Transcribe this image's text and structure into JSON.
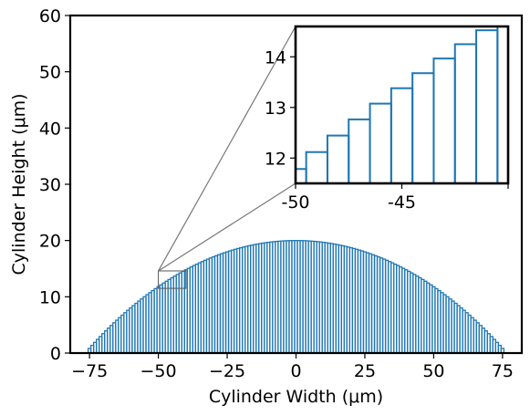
{
  "chart_data": [
    {
      "type": "bar",
      "title": "",
      "xlabel": "Cylinder Width (μm)",
      "ylabel": "Cylinder Height (μm)",
      "xlim": [
        -82,
        82
      ],
      "ylim": [
        0,
        60
      ],
      "xticks": [
        "−75",
        "−50",
        "−25",
        "0",
        "25",
        "50",
        "75"
      ],
      "xtick_values": [
        -75,
        -50,
        -25,
        0,
        25,
        50,
        75
      ],
      "yticks": [
        "0",
        "10",
        "20",
        "30",
        "40",
        "50",
        "60"
      ],
      "ytick_values": [
        0,
        10,
        20,
        30,
        40,
        50,
        60
      ],
      "bar_color": "#1f77b4",
      "bar_style": "outlined",
      "bar_width": 1,
      "profile": "circular cap: height = sqrt(R^2 - x^2) - (R - 20), R = 156.25",
      "bar_centers_range": [
        -75,
        75
      ],
      "peak_height": 20,
      "grid": false
    },
    {
      "type": "bar",
      "role": "inset zoom",
      "xlim": [
        -50,
        -40
      ],
      "ylim": [
        11.5,
        14.6
      ],
      "xticks": [
        "-50",
        "-45"
      ],
      "xtick_values": [
        -50,
        -45
      ],
      "yticks": [
        "12",
        "13",
        "14"
      ],
      "ytick_values": [
        12,
        13,
        14
      ],
      "bar_color": "#1f77b4",
      "zoom_region": {
        "x": [
          -50,
          -40
        ],
        "y": [
          11.5,
          14.6
        ]
      }
    }
  ]
}
